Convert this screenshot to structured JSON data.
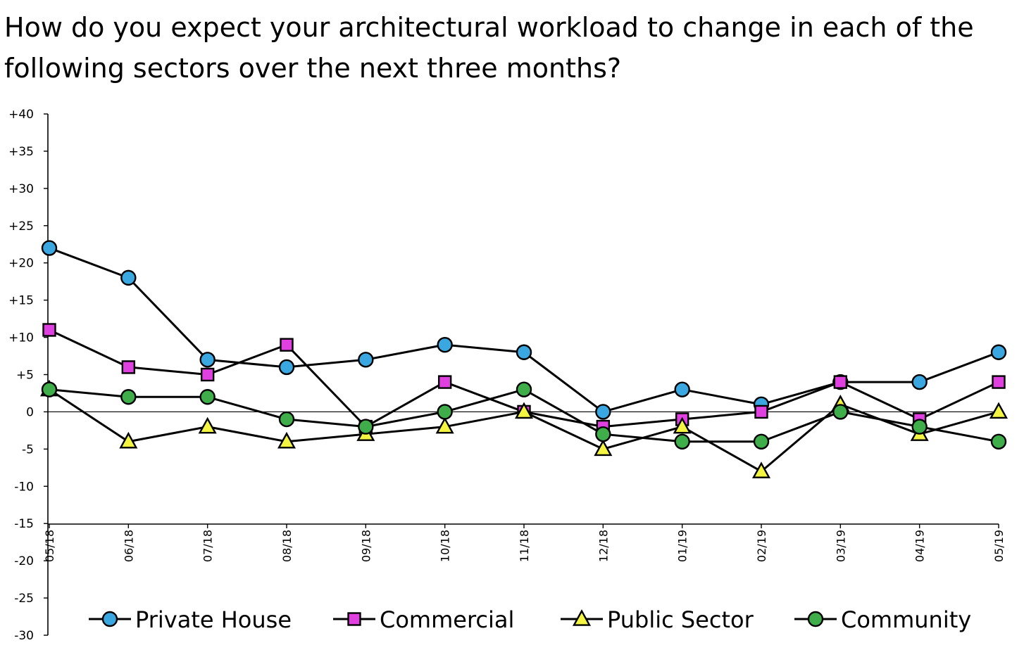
{
  "title": "How do you expect your architectural workload to change in each of the following sectors over the next three months?",
  "chart_data": {
    "type": "line",
    "title": "How do you expect your architectural workload to change in each of the following sectors over the next three months?",
    "xlabel": "",
    "ylabel": "",
    "ylim": [
      -30,
      40
    ],
    "y_ticks": [
      "+40",
      "+35",
      "+30",
      "+25",
      "+20",
      "+15",
      "+10",
      "+5",
      "0",
      "-5",
      "-10",
      "-15",
      "-20",
      "-25",
      "-30"
    ],
    "categories": [
      "05/18",
      "06/18",
      "07/18",
      "08/18",
      "09/18",
      "10/18",
      "11/18",
      "12/18",
      "01/19",
      "02/19",
      "03/19",
      "04/19",
      "05/19"
    ],
    "series": [
      {
        "name": "Private House",
        "marker": "circle",
        "color": "#3ba7e0",
        "values": [
          22,
          18,
          7,
          6,
          7,
          9,
          8,
          0,
          3,
          1,
          4,
          4,
          8
        ]
      },
      {
        "name": "Commercial",
        "marker": "square",
        "color": "#e040e0",
        "values": [
          11,
          6,
          5,
          9,
          -2,
          4,
          0,
          -2,
          -1,
          0,
          4,
          -1,
          4
        ]
      },
      {
        "name": "Public Sector",
        "marker": "triangle",
        "color": "#f4f442",
        "values": [
          3,
          -4,
          -2,
          -4,
          -3,
          -2,
          0,
          -5,
          -2,
          -8,
          1,
          -3,
          0
        ]
      },
      {
        "name": "Community",
        "marker": "circle",
        "color": "#3fae4a",
        "values": [
          3,
          2,
          2,
          -1,
          -2,
          0,
          3,
          -3,
          -4,
          -4,
          0,
          -2,
          -4
        ]
      }
    ],
    "legend_position": "bottom",
    "zero_line": true,
    "grid": false
  }
}
